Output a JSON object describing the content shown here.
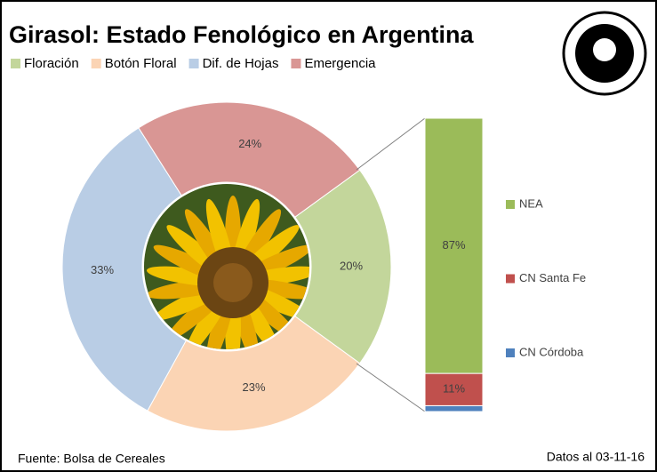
{
  "chart_data": [
    {
      "type": "donut",
      "title": "Girasol: Estado Fenológico en Argentina",
      "categories": [
        "Floración",
        "Botón Floral",
        "Dif. de Hojas",
        "Emergencia"
      ],
      "values": [
        20,
        23,
        33,
        24
      ],
      "value_labels": [
        "20%",
        "23%",
        "33%",
        "24%"
      ],
      "colors": [
        "#c3d69b",
        "#fbd4b4",
        "#b9cde5",
        "#d99694"
      ],
      "legend": "top"
    },
    {
      "type": "stacked-bar",
      "categories": [
        "NEA",
        "CN Santa Fe",
        "CN Córdoba"
      ],
      "values": [
        87,
        11,
        2
      ],
      "value_labels": [
        "87%",
        "11%",
        null
      ],
      "colors": [
        "#9bbb59",
        "#c0504d",
        "#4f81bd"
      ],
      "legend": "right"
    }
  ],
  "footer": {
    "source": "Fuente:  Bolsa de Cereales",
    "date": "Datos al 03-11-16"
  }
}
